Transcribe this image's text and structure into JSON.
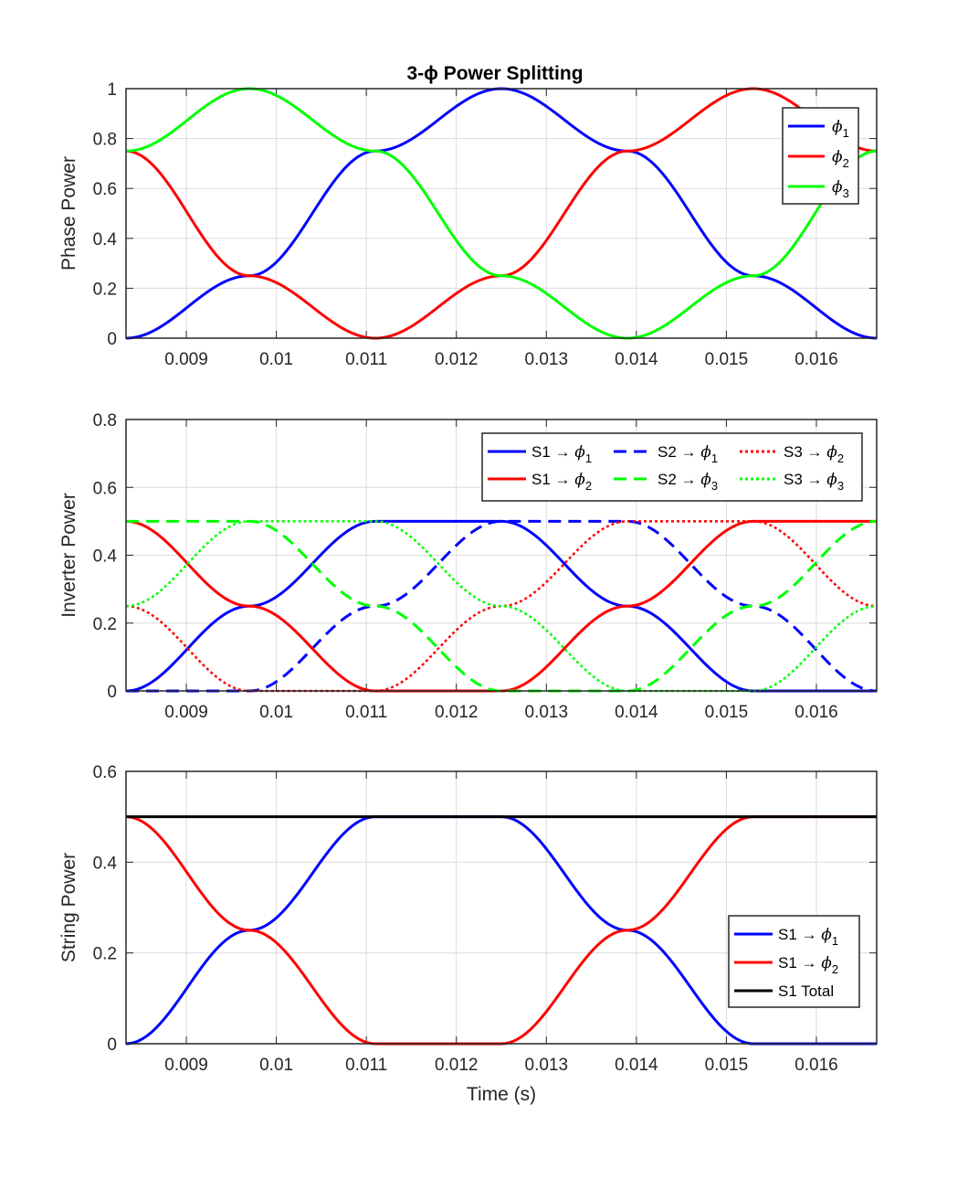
{
  "figure": {
    "title": "3-ϕ Power Splitting",
    "xlabel": "Time (s)",
    "colors": {
      "blue": "#0000ff",
      "red": "#ff0000",
      "green": "#00ff00",
      "black": "#000000"
    }
  },
  "chart_data": [
    {
      "type": "line",
      "title": "3-ϕ Power Splitting",
      "xlabel": "",
      "ylabel": "Phase Power",
      "xlim": [
        0.00833,
        0.01667
      ],
      "ylim": [
        0,
        1
      ],
      "xticks": [
        "0.009",
        "0.01",
        "0.011",
        "0.012",
        "0.013",
        "0.014",
        "0.015",
        "0.016"
      ],
      "yticks": [
        "0",
        "0.2",
        "0.4",
        "0.6",
        "0.8",
        "1"
      ],
      "grid": true,
      "legend_position": "top-right",
      "series": [
        {
          "name": "ϕ1",
          "color": "#0000ff",
          "style": "solid",
          "x": [
            0.00833,
            0.0097,
            0.0111,
            0.0125,
            0.0139,
            0.0153,
            0.01667
          ],
          "y": [
            0,
            0.25,
            0.75,
            1,
            0.75,
            0.25,
            0
          ]
        },
        {
          "name": "ϕ2",
          "color": "#ff0000",
          "style": "solid",
          "x": [
            0.00833,
            0.0097,
            0.0111,
            0.0125,
            0.0139,
            0.0153,
            0.01667
          ],
          "y": [
            0.75,
            0.25,
            0,
            0.25,
            0.75,
            1,
            0.75
          ]
        },
        {
          "name": "ϕ3",
          "color": "#00ff00",
          "style": "solid",
          "x": [
            0.00833,
            0.0097,
            0.0111,
            0.0125,
            0.0139,
            0.0153,
            0.01667
          ],
          "y": [
            0.75,
            1,
            0.75,
            0.25,
            0,
            0.25,
            0.75
          ]
        }
      ]
    },
    {
      "type": "line",
      "title": "",
      "xlabel": "",
      "ylabel": "Inverter Power",
      "xlim": [
        0.00833,
        0.01667
      ],
      "ylim": [
        0,
        0.8
      ],
      "xticks": [
        "0.009",
        "0.01",
        "0.011",
        "0.012",
        "0.013",
        "0.014",
        "0.015",
        "0.016"
      ],
      "yticks": [
        "0",
        "0.2",
        "0.4",
        "0.6",
        "0.8"
      ],
      "grid": true,
      "legend_position": "top-right",
      "series": [
        {
          "name": "S1 → ϕ1",
          "color": "#0000ff",
          "style": "solid",
          "x": [
            0.00833,
            0.0097,
            0.0111,
            0.0125,
            0.0139,
            0.0153,
            0.01667
          ],
          "y": [
            0,
            0.25,
            0.5,
            0.5,
            0.25,
            0,
            0
          ]
        },
        {
          "name": "S2 → ϕ1",
          "color": "#0000ff",
          "style": "dashed",
          "x": [
            0.00833,
            0.0097,
            0.0111,
            0.0125,
            0.0139,
            0.0153,
            0.01667
          ],
          "y": [
            0,
            0,
            0.25,
            0.5,
            0.5,
            0.25,
            0
          ]
        },
        {
          "name": "S3 → ϕ2",
          "color": "#ff0000",
          "style": "dotted",
          "x": [
            0.00833,
            0.0097,
            0.0111,
            0.0125,
            0.0139,
            0.0153,
            0.01667
          ],
          "y": [
            0.25,
            0,
            0,
            0.25,
            0.5,
            0.5,
            0.25
          ]
        },
        {
          "name": "S1 → ϕ2",
          "color": "#ff0000",
          "style": "solid",
          "x": [
            0.00833,
            0.0097,
            0.0111,
            0.0125,
            0.0139,
            0.0153,
            0.01667
          ],
          "y": [
            0.5,
            0.25,
            0,
            0,
            0.25,
            0.5,
            0.5
          ]
        },
        {
          "name": "S2 → ϕ3",
          "color": "#00ff00",
          "style": "dashed",
          "x": [
            0.00833,
            0.0097,
            0.0111,
            0.0125,
            0.0139,
            0.0153,
            0.01667
          ],
          "y": [
            0.5,
            0.5,
            0.25,
            0,
            0,
            0.25,
            0.5
          ]
        },
        {
          "name": "S3 → ϕ3",
          "color": "#00ff00",
          "style": "dotted",
          "x": [
            0.00833,
            0.0097,
            0.0111,
            0.0125,
            0.0139,
            0.0153,
            0.01667
          ],
          "y": [
            0.25,
            0.5,
            0.5,
            0.25,
            0,
            0,
            0.25
          ]
        }
      ]
    },
    {
      "type": "line",
      "title": "",
      "xlabel": "Time (s)",
      "ylabel": "String Power",
      "xlim": [
        0.00833,
        0.01667
      ],
      "ylim": [
        0,
        0.6
      ],
      "xticks": [
        "0.009",
        "0.01",
        "0.011",
        "0.012",
        "0.013",
        "0.014",
        "0.015",
        "0.016"
      ],
      "yticks": [
        "0",
        "0.2",
        "0.4",
        "0.6"
      ],
      "grid": true,
      "legend_position": "bottom-right",
      "series": [
        {
          "name": "S1 → ϕ1",
          "color": "#0000ff",
          "style": "solid",
          "x": [
            0.00833,
            0.0097,
            0.0111,
            0.0125,
            0.0139,
            0.0153,
            0.01667
          ],
          "y": [
            0,
            0.25,
            0.5,
            0.5,
            0.25,
            0,
            0
          ]
        },
        {
          "name": "S1 → ϕ2",
          "color": "#ff0000",
          "style": "solid",
          "x": [
            0.00833,
            0.0097,
            0.0111,
            0.0125,
            0.0139,
            0.0153,
            0.01667
          ],
          "y": [
            0.5,
            0.25,
            0,
            0,
            0.25,
            0.5,
            0.5
          ]
        },
        {
          "name": "S1 Total",
          "color": "#000000",
          "style": "solid",
          "x": [
            0.00833,
            0.01667
          ],
          "y": [
            0.5,
            0.5
          ]
        }
      ]
    }
  ]
}
